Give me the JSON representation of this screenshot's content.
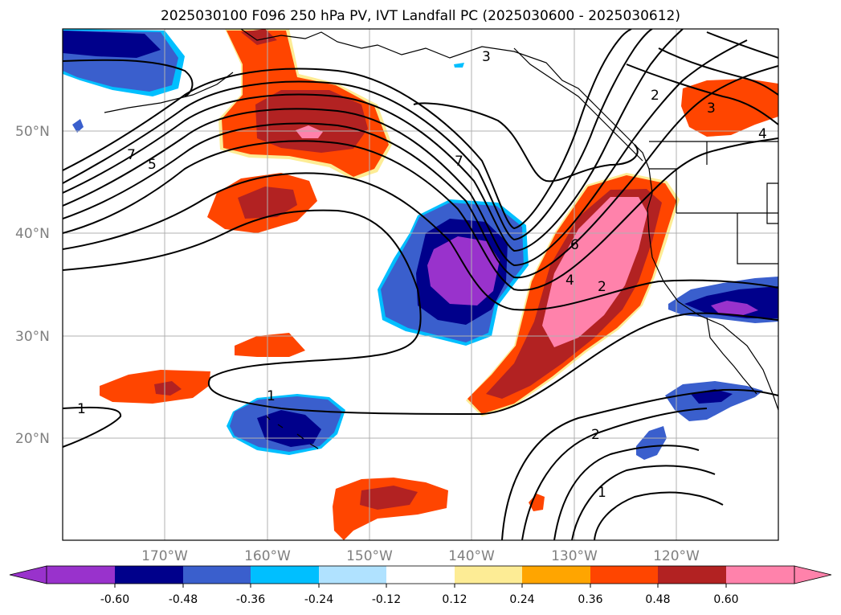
{
  "title": "2025030100 F096 250 hPa PV, IVT Landfall PC (2025030600 - 2025030612)",
  "lat_labels": [
    "50°N",
    "40°N",
    "30°N",
    "20°N"
  ],
  "lon_labels": [
    "170°W",
    "160°W",
    "150°W",
    "140°W",
    "130°W",
    "120°W"
  ],
  "colorbar": {
    "colors": [
      "#9932cc",
      "#00008b",
      "#3a5fcd",
      "#00bfff",
      "#b0e2ff",
      "#ffffff",
      "#fdec95",
      "#ffa500",
      "#ff4500",
      "#b22222",
      "#ff82ab",
      "#ff82ab"
    ],
    "ticks": [
      "-0.60",
      "-0.48",
      "-0.36",
      "-0.24",
      "-0.12",
      "0.12",
      "0.24",
      "0.36",
      "0.48",
      "0.60"
    ]
  },
  "contour_labels": [
    "7",
    "5",
    "3",
    "2",
    "3",
    "4",
    "7",
    "6",
    "4",
    "2",
    "1",
    "1",
    "2",
    "1"
  ]
}
